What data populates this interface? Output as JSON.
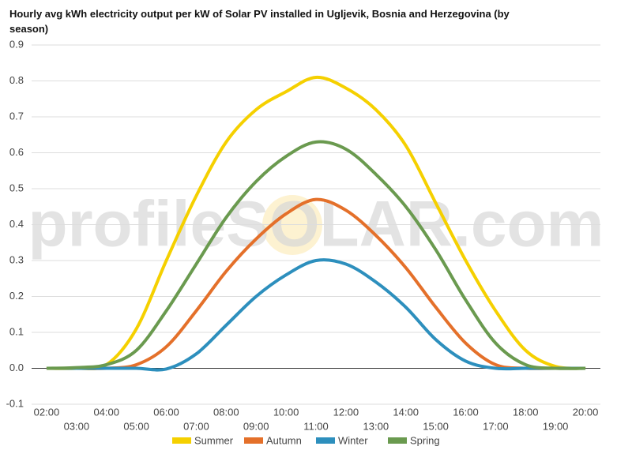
{
  "chart_data": {
    "type": "line",
    "title": "Hourly avg kWh electricity output per kW of Solar PV installed in Ugljevik, Bosnia and Herzegovina (by season)",
    "watermark": "profileSOLAR.com",
    "categories": [
      "02:00",
      "03:00",
      "04:00",
      "05:00",
      "06:00",
      "07:00",
      "08:00",
      "09:00",
      "10:00",
      "11:00",
      "12:00",
      "13:00",
      "14:00",
      "15:00",
      "16:00",
      "17:00",
      "18:00",
      "19:00",
      "20:00"
    ],
    "series": [
      {
        "name": "Summer",
        "color": "#f5d000",
        "values": [
          0,
          0,
          0.01,
          0.11,
          0.3,
          0.48,
          0.63,
          0.72,
          0.77,
          0.81,
          0.78,
          0.72,
          0.62,
          0.46,
          0.3,
          0.16,
          0.05,
          0.005,
          0
        ]
      },
      {
        "name": "Autumn",
        "color": "#e4702a",
        "values": [
          0,
          0,
          0,
          0.01,
          0.06,
          0.16,
          0.27,
          0.36,
          0.43,
          0.47,
          0.44,
          0.37,
          0.28,
          0.17,
          0.07,
          0.01,
          0,
          0,
          0
        ]
      },
      {
        "name": "Winter",
        "color": "#2d8fbd",
        "values": [
          0,
          0,
          0,
          0,
          -0.002,
          0.04,
          0.12,
          0.2,
          0.26,
          0.3,
          0.29,
          0.24,
          0.17,
          0.08,
          0.02,
          0,
          0,
          0,
          0
        ]
      },
      {
        "name": "Spring",
        "color": "#6a9a4f",
        "values": [
          0,
          0.002,
          0.01,
          0.05,
          0.16,
          0.29,
          0.42,
          0.52,
          0.59,
          0.63,
          0.61,
          0.54,
          0.45,
          0.33,
          0.19,
          0.07,
          0.01,
          0,
          0
        ]
      }
    ],
    "ylim": [
      -0.1,
      0.9
    ],
    "yticks": [
      -0.1,
      {
        "value": 0,
        "label": "0.0"
      },
      0.1,
      0.2,
      0.3,
      0.4,
      0.5,
      0.6,
      0.7,
      0.8,
      0.9
    ],
    "grid": true,
    "legend": "bottom"
  }
}
